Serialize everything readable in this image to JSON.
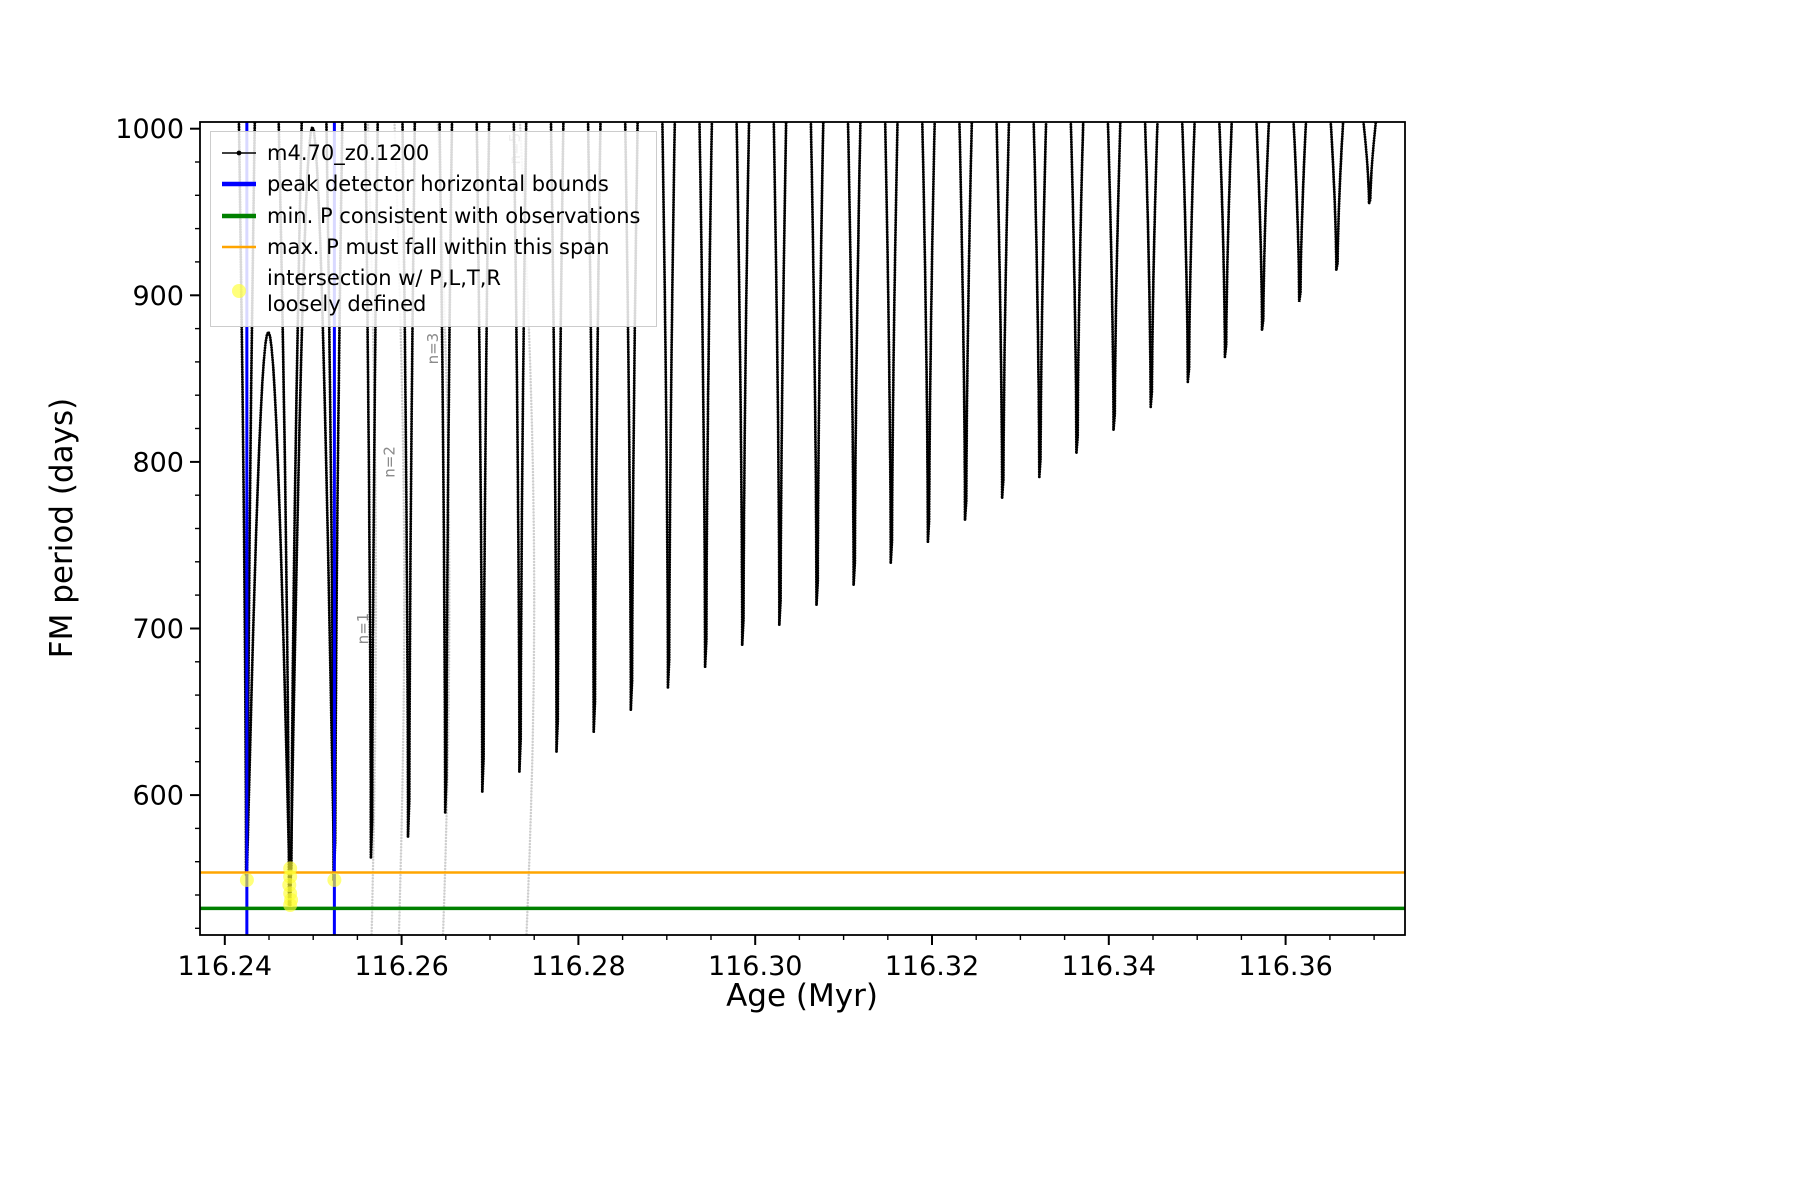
{
  "figure": {
    "background": "#ffffff"
  },
  "axes": {
    "xlabel": "Age (Myr)",
    "ylabel": "FM period (days)",
    "xlim": [
      116.2372,
      116.3735
    ],
    "ylim": [
      516,
      1004
    ],
    "xticks": [
      {
        "v": 116.24,
        "label": "116.24"
      },
      {
        "v": 116.26,
        "label": "116.26"
      },
      {
        "v": 116.28,
        "label": "116.28"
      },
      {
        "v": 116.3,
        "label": "116.30"
      },
      {
        "v": 116.32,
        "label": "116.32"
      },
      {
        "v": 116.34,
        "label": "116.34"
      },
      {
        "v": 116.36,
        "label": "116.36"
      }
    ],
    "yticks": [
      {
        "v": 600,
        "label": "600"
      },
      {
        "v": 700,
        "label": "700"
      },
      {
        "v": 800,
        "label": "800"
      },
      {
        "v": 900,
        "label": "900"
      },
      {
        "v": 1000,
        "label": "1000"
      }
    ],
    "x_minor_step": 0.005,
    "y_minor_step": 20
  },
  "colors": {
    "series": "#000000",
    "bounds": "#0000ff",
    "min_line": "#008000",
    "max_line": "#ffa500",
    "intersection": "#ffff33",
    "mode_gray": "#8a8a8a",
    "gray_track": "#c9c9c9"
  },
  "legend": {
    "entries": [
      {
        "marker": "line-dot",
        "color": "#000000",
        "label": "m4.70_z0.1200"
      },
      {
        "marker": "thick-line",
        "color": "#0000ff",
        "label": "peak detector horizontal bounds"
      },
      {
        "marker": "thick-line",
        "color": "#008000",
        "label": "min. P consistent with observations"
      },
      {
        "marker": "line",
        "color": "#ffa500",
        "label": "max. P must fall within this span"
      },
      {
        "marker": "dot",
        "color": "#ffff33",
        "label": "intersection w/ P,L,T,R\nloosely defined"
      }
    ]
  },
  "chart_data": {
    "type": "line",
    "title": "",
    "xlabel": "Age (Myr)",
    "ylabel": "FM period (days)",
    "xlim": [
      116.2372,
      116.3735
    ],
    "ylim": [
      516,
      1004
    ],
    "grid": false,
    "legend_position": "upper left",
    "series": [
      {
        "name": "m4.70_z0.1200",
        "color": "#000000",
        "style": "dotted-marker track of narrow dips hanging from top of axes; dip minima rise with age",
        "default_half_width": 0.0007,
        "dips": [
          {
            "x": 116.2425,
            "min": 552,
            "w": 0.0009
          },
          {
            "x": 116.2474,
            "min": 534,
            "w": 0.0013
          },
          {
            "x": 116.2524,
            "min": 549,
            "w": 0.0009
          },
          {
            "x": 116.2566,
            "min": 562
          },
          {
            "x": 116.2608,
            "min": 575
          },
          {
            "x": 116.265,
            "min": 589
          },
          {
            "x": 116.2692,
            "min": 602
          },
          {
            "x": 116.2734,
            "min": 614
          },
          {
            "x": 116.2776,
            "min": 626
          },
          {
            "x": 116.2818,
            "min": 638
          },
          {
            "x": 116.286,
            "min": 651
          },
          {
            "x": 116.2902,
            "min": 664
          },
          {
            "x": 116.2944,
            "min": 677
          },
          {
            "x": 116.2986,
            "min": 690
          },
          {
            "x": 116.3028,
            "min": 702
          },
          {
            "x": 116.307,
            "min": 714
          },
          {
            "x": 116.3112,
            "min": 726
          },
          {
            "x": 116.3154,
            "min": 739
          },
          {
            "x": 116.3196,
            "min": 752
          },
          {
            "x": 116.3238,
            "min": 765
          },
          {
            "x": 116.328,
            "min": 778
          },
          {
            "x": 116.3322,
            "min": 791
          },
          {
            "x": 116.3364,
            "min": 805
          },
          {
            "x": 116.3406,
            "min": 819
          },
          {
            "x": 116.3448,
            "min": 833
          },
          {
            "x": 116.349,
            "min": 848
          },
          {
            "x": 116.3532,
            "min": 863
          },
          {
            "x": 116.3574,
            "min": 879
          },
          {
            "x": 116.3616,
            "min": 896
          },
          {
            "x": 116.3658,
            "min": 915
          },
          {
            "x": 116.3695,
            "min": 955
          }
        ],
        "humps": [
          {
            "between": [
              0,
              1
            ],
            "max": 878
          },
          {
            "between": [
              1,
              2
            ],
            "max": 1001
          }
        ]
      }
    ],
    "peak_bounds_x": [
      116.2425,
      116.2524
    ],
    "min_P_line_y": 532,
    "max_P_line_y": 553.5,
    "intersections": [
      [
        116.2425,
        549
      ],
      [
        116.2474,
        556
      ],
      [
        116.2474,
        551
      ],
      [
        116.2473,
        546
      ],
      [
        116.2474,
        541
      ],
      [
        116.2475,
        537
      ],
      [
        116.2474,
        534
      ],
      [
        116.2524,
        549
      ]
    ],
    "mode_labels": [
      {
        "text": "n=1",
        "x": 116.2562,
        "y": 700
      },
      {
        "text": "n=2",
        "x": 116.2592,
        "y": 800
      },
      {
        "text": "n=3",
        "x": 116.2641,
        "y": 868
      },
      {
        "text": "n=5",
        "x": 116.2734,
        "y": 988
      }
    ],
    "gray_tracks": [
      {
        "x": 116.2562,
        "bend": 0.0009
      },
      {
        "x": 116.2592,
        "bend": 0.0011
      },
      {
        "x": 116.2641,
        "bend": 0.0013
      },
      {
        "x": 116.2734,
        "bend": 0.0016
      }
    ]
  }
}
